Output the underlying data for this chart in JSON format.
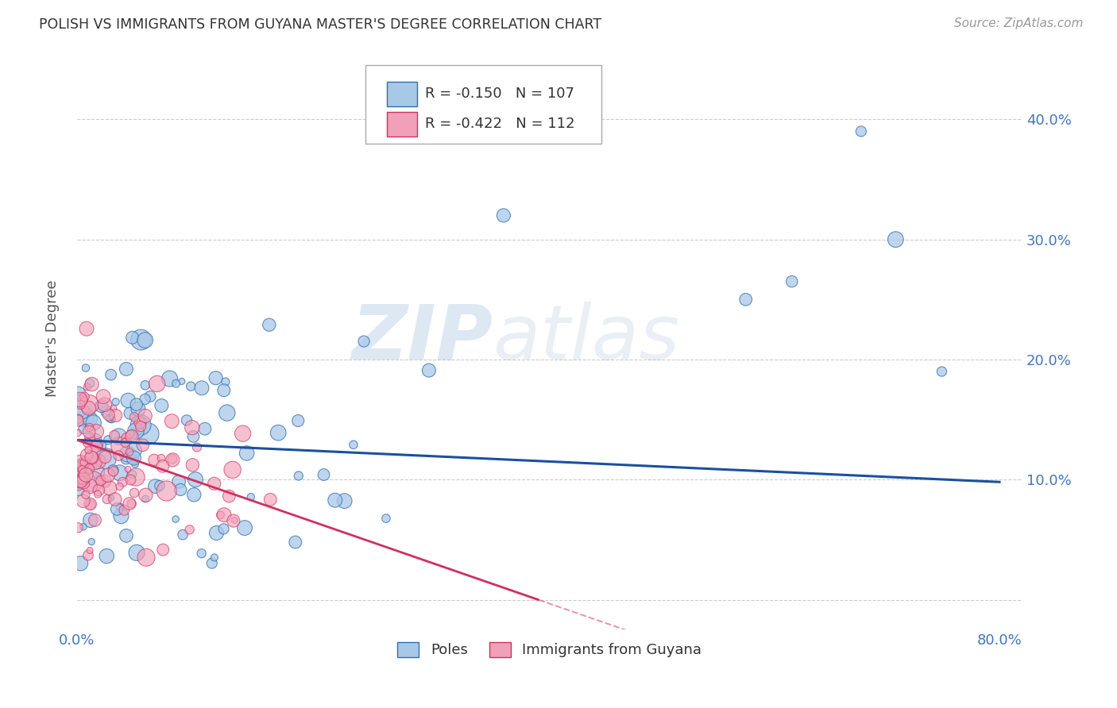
{
  "title": "POLISH VS IMMIGRANTS FROM GUYANA MASTER'S DEGREE CORRELATION CHART",
  "source": "Source: ZipAtlas.com",
  "ylabel": "Master's Degree",
  "xlim": [
    0.0,
    0.82
  ],
  "ylim": [
    -0.025,
    0.46
  ],
  "xticks": [
    0.0,
    0.1,
    0.2,
    0.3,
    0.4,
    0.5,
    0.6,
    0.7,
    0.8
  ],
  "xtick_labels": [
    "0.0%",
    "",
    "",
    "",
    "",
    "",
    "",
    "",
    "80.0%"
  ],
  "ytick_positions": [
    0.0,
    0.1,
    0.2,
    0.3,
    0.4
  ],
  "ytick_labels_right": [
    "",
    "10.0%",
    "20.0%",
    "30.0%",
    "40.0%"
  ],
  "blue_fill": "#a8c8e8",
  "blue_edge": "#3070b0",
  "pink_fill": "#f0a0b8",
  "pink_edge": "#d03060",
  "blue_line_color": "#1a50a0",
  "pink_line_color": "#d03060",
  "legend_label_blue": "Poles",
  "legend_label_pink": "Immigrants from Guyana",
  "watermark_zip": "ZIP",
  "watermark_atlas": "atlas",
  "background_color": "#ffffff",
  "grid_color": "#cccccc",
  "title_color": "#333333",
  "axis_tick_color": "#4477bb",
  "blue_line_x0": 0.0,
  "blue_line_y0": 0.133,
  "blue_line_x1": 0.8,
  "blue_line_y1": 0.098,
  "pink_line_x0": 0.0,
  "pink_line_y0": 0.133,
  "pink_line_x1": 0.4,
  "pink_line_y1": 0.0
}
